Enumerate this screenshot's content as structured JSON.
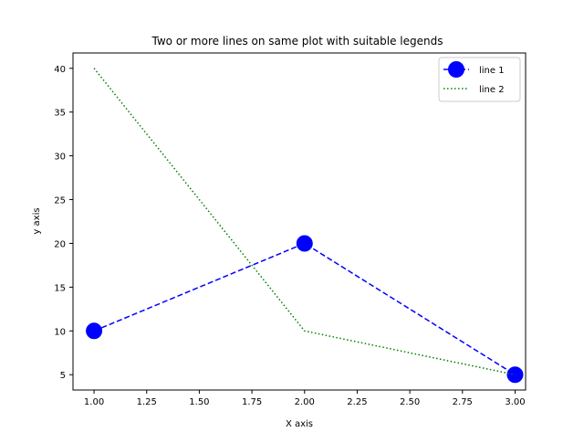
{
  "chart_data": {
    "type": "line",
    "title": "Two or more lines on same plot with suitable legends",
    "xlabel": "X axis",
    "ylabel": "y axis",
    "xlim": [
      0.9,
      3.05
    ],
    "ylim": [
      3.25,
      41.75
    ],
    "xticks": [
      1.0,
      1.25,
      1.5,
      1.75,
      2.0,
      2.25,
      2.5,
      2.75,
      3.0
    ],
    "xtick_labels": [
      "1.00",
      "1.25",
      "1.50",
      "1.75",
      "2.00",
      "2.25",
      "2.50",
      "2.75",
      "3.00"
    ],
    "yticks": [
      5,
      10,
      15,
      20,
      25,
      30,
      35,
      40
    ],
    "ytick_labels": [
      "5",
      "10",
      "15",
      "20",
      "25",
      "30",
      "35",
      "40"
    ],
    "grid": false,
    "legend_position": "top-right",
    "series": [
      {
        "name": "line 1",
        "x": [
          1,
          2,
          3
        ],
        "y": [
          10,
          20,
          5
        ],
        "color": "#0000ff",
        "linestyle": "dashed",
        "marker": "circle"
      },
      {
        "name": "line 2",
        "x": [
          1,
          2,
          3
        ],
        "y": [
          40,
          10,
          5
        ],
        "color": "#008000",
        "linestyle": "dotted",
        "marker": "none"
      }
    ]
  }
}
